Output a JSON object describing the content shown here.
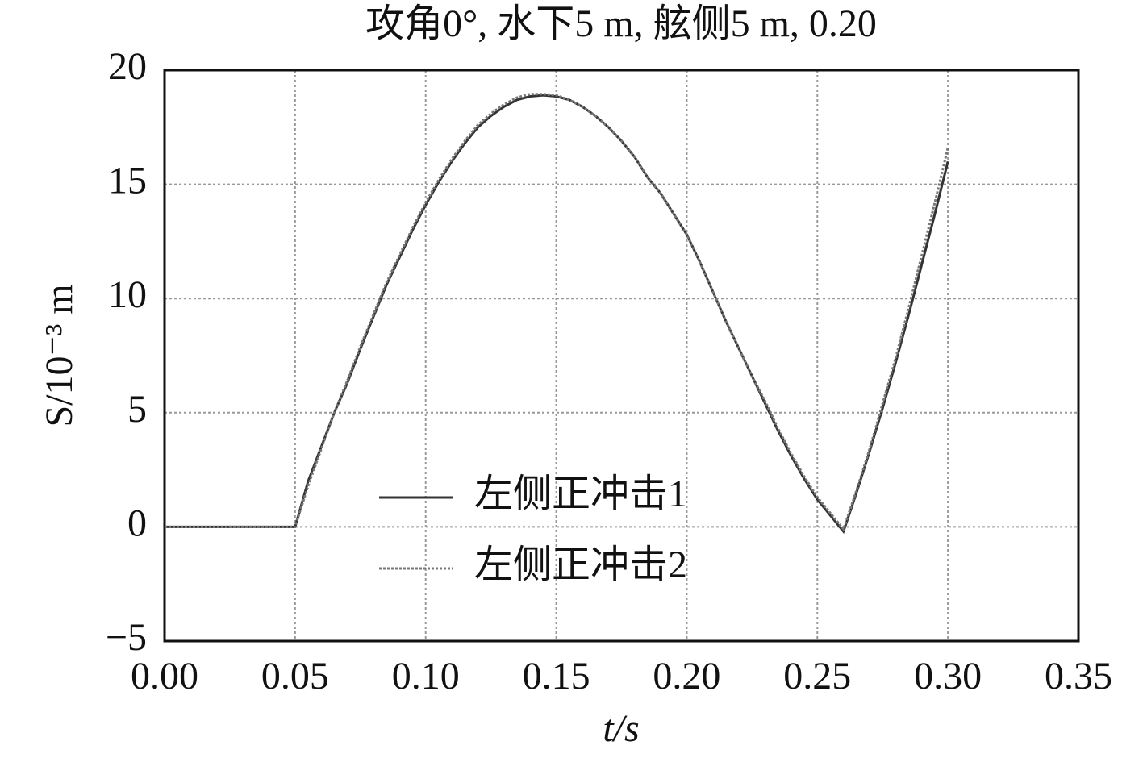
{
  "chart_data": {
    "type": "line",
    "title": "攻角0°, 水下5 m, 舷侧5 m,  0.20",
    "x_label": "t/s",
    "y_label": "S/10⁻³ m",
    "x": [
      0,
      0.05,
      0.055,
      0.06,
      0.065,
      0.07,
      0.075,
      0.08,
      0.085,
      0.09,
      0.095,
      0.1,
      0.105,
      0.11,
      0.115,
      0.12,
      0.125,
      0.13,
      0.135,
      0.14,
      0.145,
      0.15,
      0.155,
      0.16,
      0.165,
      0.17,
      0.175,
      0.18,
      0.185,
      0.19,
      0.195,
      0.2,
      0.205,
      0.21,
      0.215,
      0.22,
      0.225,
      0.23,
      0.235,
      0.24,
      0.245,
      0.25,
      0.255,
      0.26,
      0.265,
      0.27,
      0.275,
      0.28,
      0.285,
      0.29,
      0.295,
      0.3
    ],
    "series": [
      {
        "name": "左侧正冲击1",
        "color": "#333333",
        "dash": "solid",
        "values": [
          0,
          0,
          2.0,
          3.5,
          5.0,
          6.3,
          7.8,
          9.2,
          10.6,
          11.8,
          13.0,
          14.1,
          15.1,
          16.0,
          16.8,
          17.5,
          18.0,
          18.4,
          18.7,
          18.85,
          18.9,
          18.85,
          18.7,
          18.4,
          18.0,
          17.5,
          16.9,
          16.2,
          15.3,
          14.6,
          13.7,
          12.8,
          11.6,
          10.3,
          9.0,
          7.8,
          6.6,
          5.4,
          4.2,
          3.1,
          2.1,
          1.2,
          0.5,
          -0.2,
          1.5,
          3.3,
          5.2,
          7.2,
          9.3,
          11.5,
          13.7,
          16.0
        ]
      },
      {
        "name": "左侧正冲击2",
        "color": "#777777",
        "dash": "dotted",
        "values": [
          0,
          0,
          1.8,
          3.4,
          5.0,
          6.4,
          7.9,
          9.3,
          10.7,
          11.9,
          13.1,
          14.2,
          15.2,
          16.1,
          16.9,
          17.6,
          18.1,
          18.5,
          18.8,
          18.95,
          18.95,
          18.9,
          18.7,
          18.4,
          18.0,
          17.5,
          16.9,
          16.2,
          15.3,
          14.6,
          13.7,
          12.8,
          11.6,
          10.3,
          9.0,
          7.8,
          6.6,
          5.5,
          4.3,
          3.2,
          2.2,
          1.3,
          0.6,
          -0.1,
          1.6,
          3.4,
          5.4,
          7.4,
          9.6,
          11.9,
          14.2,
          16.6
        ]
      }
    ],
    "xlim": [
      0,
      0.35
    ],
    "ylim": [
      -5,
      20
    ],
    "xticks": [
      {
        "value": 0,
        "label": "0.00"
      },
      {
        "value": 0.05,
        "label": "0.05"
      },
      {
        "value": 0.1,
        "label": "0.10"
      },
      {
        "value": 0.15,
        "label": "0.15"
      },
      {
        "value": 0.2,
        "label": "0.20"
      },
      {
        "value": 0.25,
        "label": "0.25"
      },
      {
        "value": 0.3,
        "label": "0.30"
      },
      {
        "value": 0.35,
        "label": "0.35"
      }
    ],
    "yticks": [
      {
        "value": -5,
        "label": "−5"
      },
      0,
      5,
      10,
      15,
      20
    ],
    "grid": true,
    "legend": "bottom-center"
  }
}
